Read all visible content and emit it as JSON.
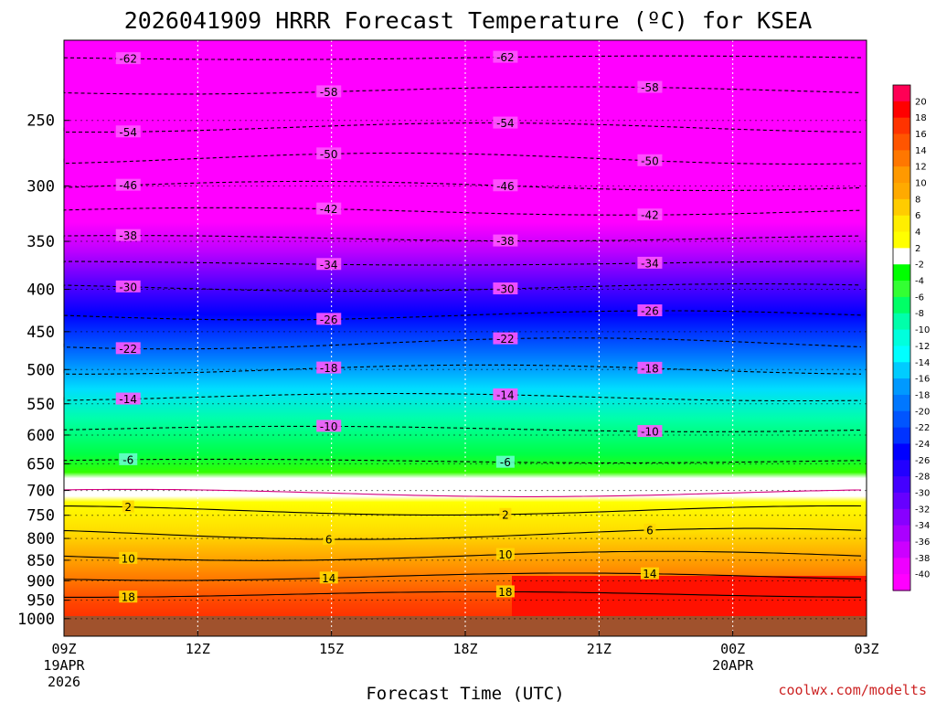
{
  "chart_data": {
    "type": "heatmap",
    "title": "2026041909 HRRR Forecast Temperature (ºC) for KSEA",
    "xlabel": "Forecast Time (UTC)",
    "ylabel": "",
    "credit": "coolwx.com/modelts",
    "x_ticks": [
      {
        "hour": 0,
        "label": "09Z",
        "sub1": "19APR",
        "sub2": "2026"
      },
      {
        "hour": 3,
        "label": "12Z",
        "sub1": "",
        "sub2": ""
      },
      {
        "hour": 6,
        "label": "15Z",
        "sub1": "",
        "sub2": ""
      },
      {
        "hour": 9,
        "label": "18Z",
        "sub1": "",
        "sub2": ""
      },
      {
        "hour": 12,
        "label": "21Z",
        "sub1": "",
        "sub2": ""
      },
      {
        "hour": 15,
        "label": "00Z",
        "sub1": "20APR",
        "sub2": ""
      },
      {
        "hour": 18,
        "label": "03Z",
        "sub1": "",
        "sub2": ""
      }
    ],
    "x_range_hours": [
      0,
      18
    ],
    "y_axis": "pressure (hPa), log scale, inverted",
    "y_range": [
      1050,
      200
    ],
    "y_ticks": [
      250,
      300,
      350,
      400,
      450,
      500,
      550,
      600,
      650,
      700,
      750,
      800,
      850,
      900,
      950,
      1000
    ],
    "colorbar": {
      "labels": [
        "20",
        "18",
        "16",
        "14",
        "12",
        "10",
        "8",
        "6",
        "4",
        "2",
        "-2",
        "-4",
        "-6",
        "-8",
        "-10",
        "-12",
        "-14",
        "-16",
        "-18",
        "-20",
        "-22",
        "-24",
        "-26",
        "-28",
        "-30",
        "-32",
        "-34",
        "-36",
        "-38",
        "-40"
      ],
      "colors": [
        "#ff0055",
        "#ff0000",
        "#ff3300",
        "#ff5500",
        "#ff7700",
        "#ff9900",
        "#ffaa00",
        "#ffcc00",
        "#ffee00",
        "#ffff00",
        "#ffffff",
        "#00ff00",
        "#33ff33",
        "#00ff66",
        "#00ffaa",
        "#00ffdd",
        "#00ffff",
        "#00ccff",
        "#0099ff",
        "#0077ff",
        "#0055ff",
        "#0033ff",
        "#0000ff",
        "#2200ff",
        "#4400ff",
        "#6600ff",
        "#8800ff",
        "#aa00ff",
        "#cc00ff",
        "#ee00ff",
        "#ff00ff"
      ]
    },
    "isotherms": [
      {
        "label": "-62",
        "p": 210,
        "style": "dashed"
      },
      {
        "label": "-58",
        "p": 230,
        "style": "dashed"
      },
      {
        "label": "-54",
        "p": 255,
        "style": "dashed"
      },
      {
        "label": "-50",
        "p": 278,
        "style": "dashed"
      },
      {
        "label": "-46",
        "p": 300,
        "style": "dashed"
      },
      {
        "label": "-42",
        "p": 322,
        "style": "dashed"
      },
      {
        "label": "-38",
        "p": 347,
        "style": "dashed"
      },
      {
        "label": "-34",
        "p": 372,
        "style": "dashed"
      },
      {
        "label": "-30",
        "p": 398,
        "style": "dashed"
      },
      {
        "label": "-26",
        "p": 430,
        "style": "dashed"
      },
      {
        "label": "-22",
        "p": 465,
        "style": "dashed"
      },
      {
        "label": "-18",
        "p": 500,
        "style": "dashed"
      },
      {
        "label": "-14",
        "p": 540,
        "style": "dashed"
      },
      {
        "label": "-10",
        "p": 590,
        "style": "dashed"
      },
      {
        "label": "-6",
        "p": 645,
        "style": "dashed"
      },
      {
        "label": "0",
        "p": 705,
        "style": "freezing"
      },
      {
        "label": "2",
        "p": 740,
        "style": "solid"
      },
      {
        "label": "6",
        "p": 790,
        "style": "solid"
      },
      {
        "label": "10",
        "p": 840,
        "style": "solid"
      },
      {
        "label": "14",
        "p": 890,
        "style": "solid"
      },
      {
        "label": "18",
        "p": 935,
        "style": "solid"
      }
    ]
  }
}
